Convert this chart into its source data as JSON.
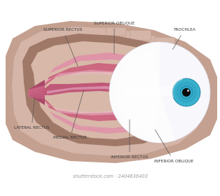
{
  "background_color": "#ffffff",
  "skull_outer_color": "#c4a090",
  "skull_mid_color": "#d4b5a8",
  "skull_inner_color": "#a07868",
  "socket_color": "#b89088",
  "fat_color": "#d8b8a8",
  "muscle_main": "#cc6880",
  "muscle_light": "#e090a8",
  "muscle_mid": "#c05878",
  "muscle_highlight": "#eebbcc",
  "muscle_dark": "#aa4868",
  "eyeball_color": "#f8f8fc",
  "eyeball_shadow": "#e8e8f0",
  "iris_outer": "#38b0cc",
  "iris_mid": "#2898b8",
  "iris_inner": "#1878a0",
  "pupil_color": "#0a0a0a",
  "label_color": "#333333",
  "label_fontsize": 4.2,
  "labels": {
    "superior_rectus": "SUPERIOR RECTUS",
    "superior_oblique": "SUPERIOR OBLIQUE",
    "trochlea": "TROCHLEA",
    "lateral_rectus": "LATERAL RECTUS",
    "medial_rectus": "MEDIAL RECTUS",
    "inferior_rectus": "INFERIOR RECTUS",
    "inferior_oblique": "INFERIOR OBLIQUE"
  },
  "figsize": [
    3.14,
    2.8
  ],
  "dpi": 100
}
